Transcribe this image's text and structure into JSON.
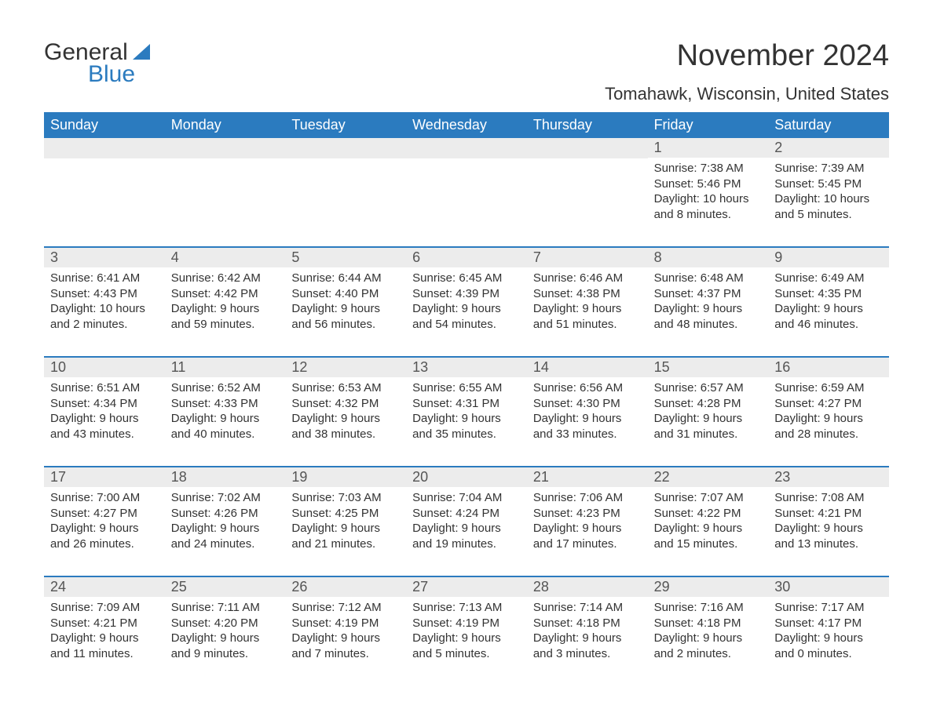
{
  "logo": {
    "text1": "General",
    "text2": "Blue",
    "text1_color": "#333333",
    "text2_color": "#2b7bbf",
    "sail_color": "#2b7bbf"
  },
  "title": "November 2024",
  "location": "Tomahawk, Wisconsin, United States",
  "colors": {
    "header_bg": "#2b7bbf",
    "header_text": "#ffffff",
    "week_border": "#2b7bbf",
    "daynum_bg": "#ececec",
    "text": "#333333"
  },
  "weekdays": [
    "Sunday",
    "Monday",
    "Tuesday",
    "Wednesday",
    "Thursday",
    "Friday",
    "Saturday"
  ],
  "weeks": [
    [
      null,
      null,
      null,
      null,
      null,
      {
        "n": "1",
        "sunrise": "Sunrise: 7:38 AM",
        "sunset": "Sunset: 5:46 PM",
        "daylight": "Daylight: 10 hours and 8 minutes."
      },
      {
        "n": "2",
        "sunrise": "Sunrise: 7:39 AM",
        "sunset": "Sunset: 5:45 PM",
        "daylight": "Daylight: 10 hours and 5 minutes."
      }
    ],
    [
      {
        "n": "3",
        "sunrise": "Sunrise: 6:41 AM",
        "sunset": "Sunset: 4:43 PM",
        "daylight": "Daylight: 10 hours and 2 minutes."
      },
      {
        "n": "4",
        "sunrise": "Sunrise: 6:42 AM",
        "sunset": "Sunset: 4:42 PM",
        "daylight": "Daylight: 9 hours and 59 minutes."
      },
      {
        "n": "5",
        "sunrise": "Sunrise: 6:44 AM",
        "sunset": "Sunset: 4:40 PM",
        "daylight": "Daylight: 9 hours and 56 minutes."
      },
      {
        "n": "6",
        "sunrise": "Sunrise: 6:45 AM",
        "sunset": "Sunset: 4:39 PM",
        "daylight": "Daylight: 9 hours and 54 minutes."
      },
      {
        "n": "7",
        "sunrise": "Sunrise: 6:46 AM",
        "sunset": "Sunset: 4:38 PM",
        "daylight": "Daylight: 9 hours and 51 minutes."
      },
      {
        "n": "8",
        "sunrise": "Sunrise: 6:48 AM",
        "sunset": "Sunset: 4:37 PM",
        "daylight": "Daylight: 9 hours and 48 minutes."
      },
      {
        "n": "9",
        "sunrise": "Sunrise: 6:49 AM",
        "sunset": "Sunset: 4:35 PM",
        "daylight": "Daylight: 9 hours and 46 minutes."
      }
    ],
    [
      {
        "n": "10",
        "sunrise": "Sunrise: 6:51 AM",
        "sunset": "Sunset: 4:34 PM",
        "daylight": "Daylight: 9 hours and 43 minutes."
      },
      {
        "n": "11",
        "sunrise": "Sunrise: 6:52 AM",
        "sunset": "Sunset: 4:33 PM",
        "daylight": "Daylight: 9 hours and 40 minutes."
      },
      {
        "n": "12",
        "sunrise": "Sunrise: 6:53 AM",
        "sunset": "Sunset: 4:32 PM",
        "daylight": "Daylight: 9 hours and 38 minutes."
      },
      {
        "n": "13",
        "sunrise": "Sunrise: 6:55 AM",
        "sunset": "Sunset: 4:31 PM",
        "daylight": "Daylight: 9 hours and 35 minutes."
      },
      {
        "n": "14",
        "sunrise": "Sunrise: 6:56 AM",
        "sunset": "Sunset: 4:30 PM",
        "daylight": "Daylight: 9 hours and 33 minutes."
      },
      {
        "n": "15",
        "sunrise": "Sunrise: 6:57 AM",
        "sunset": "Sunset: 4:28 PM",
        "daylight": "Daylight: 9 hours and 31 minutes."
      },
      {
        "n": "16",
        "sunrise": "Sunrise: 6:59 AM",
        "sunset": "Sunset: 4:27 PM",
        "daylight": "Daylight: 9 hours and 28 minutes."
      }
    ],
    [
      {
        "n": "17",
        "sunrise": "Sunrise: 7:00 AM",
        "sunset": "Sunset: 4:27 PM",
        "daylight": "Daylight: 9 hours and 26 minutes."
      },
      {
        "n": "18",
        "sunrise": "Sunrise: 7:02 AM",
        "sunset": "Sunset: 4:26 PM",
        "daylight": "Daylight: 9 hours and 24 minutes."
      },
      {
        "n": "19",
        "sunrise": "Sunrise: 7:03 AM",
        "sunset": "Sunset: 4:25 PM",
        "daylight": "Daylight: 9 hours and 21 minutes."
      },
      {
        "n": "20",
        "sunrise": "Sunrise: 7:04 AM",
        "sunset": "Sunset: 4:24 PM",
        "daylight": "Daylight: 9 hours and 19 minutes."
      },
      {
        "n": "21",
        "sunrise": "Sunrise: 7:06 AM",
        "sunset": "Sunset: 4:23 PM",
        "daylight": "Daylight: 9 hours and 17 minutes."
      },
      {
        "n": "22",
        "sunrise": "Sunrise: 7:07 AM",
        "sunset": "Sunset: 4:22 PM",
        "daylight": "Daylight: 9 hours and 15 minutes."
      },
      {
        "n": "23",
        "sunrise": "Sunrise: 7:08 AM",
        "sunset": "Sunset: 4:21 PM",
        "daylight": "Daylight: 9 hours and 13 minutes."
      }
    ],
    [
      {
        "n": "24",
        "sunrise": "Sunrise: 7:09 AM",
        "sunset": "Sunset: 4:21 PM",
        "daylight": "Daylight: 9 hours and 11 minutes."
      },
      {
        "n": "25",
        "sunrise": "Sunrise: 7:11 AM",
        "sunset": "Sunset: 4:20 PM",
        "daylight": "Daylight: 9 hours and 9 minutes."
      },
      {
        "n": "26",
        "sunrise": "Sunrise: 7:12 AM",
        "sunset": "Sunset: 4:19 PM",
        "daylight": "Daylight: 9 hours and 7 minutes."
      },
      {
        "n": "27",
        "sunrise": "Sunrise: 7:13 AM",
        "sunset": "Sunset: 4:19 PM",
        "daylight": "Daylight: 9 hours and 5 minutes."
      },
      {
        "n": "28",
        "sunrise": "Sunrise: 7:14 AM",
        "sunset": "Sunset: 4:18 PM",
        "daylight": "Daylight: 9 hours and 3 minutes."
      },
      {
        "n": "29",
        "sunrise": "Sunrise: 7:16 AM",
        "sunset": "Sunset: 4:18 PM",
        "daylight": "Daylight: 9 hours and 2 minutes."
      },
      {
        "n": "30",
        "sunrise": "Sunrise: 7:17 AM",
        "sunset": "Sunset: 4:17 PM",
        "daylight": "Daylight: 9 hours and 0 minutes."
      }
    ]
  ]
}
